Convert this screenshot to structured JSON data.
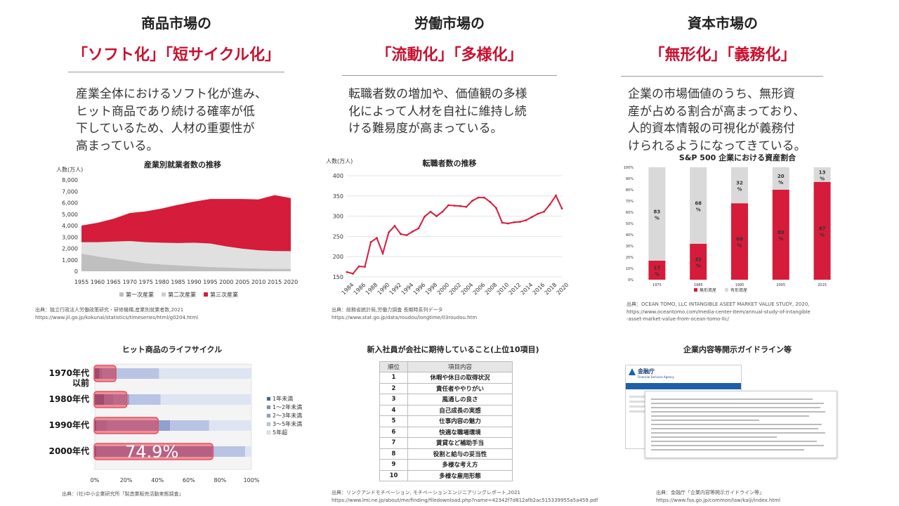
{
  "columns": [
    {
      "title": "商品市場の",
      "subtitle": "「ソフト化」「短サイクル化」",
      "description": "産業全体におけるソフト化が進み、\nヒット商品であり続ける確率が低\n下しているため、人材の重要性が\n高まっている。"
    },
    {
      "title": "労働市場の",
      "subtitle": "「流動化」「多様化」",
      "description": "転職者数の増加や、価値観の多様\n化によって人材を自社に維持し続\nける難易度が高まっている。"
    },
    {
      "title": "資本市場の",
      "subtitle": "「無形化」「義務化」",
      "description": "企業の市場価値のうち、無形資\n産が占める割合が高まっており、\n人的資本情報の可視化が義務付\nけられるようになってきている。"
    }
  ],
  "sources": {
    "s1": "出典：独立行政法人労働政策研究・研修機構,産業別就業者数,2021\nhttps://www.jil.go.jp/kokunai/statistics/timeseries/html/g0204.html",
    "s2": "出典：総務省統計局,労働力調査 長期時系列データ\nhttps://www.stat.go.jp/data/roudou/longtime/03roudou.htm",
    "s3": "出典：OCEAN TOMO, LLC INTANGIBLE ASEET MARKET VALUE STUDY, 2020,\n  https://www.oceantomo.com/media-center-item/annual-study-of-intangible\n  -asset-market-value-from-ocean-tomo-llc/",
    "s4": "出典：(社)中小企業研究所「製造業販売活動実態調査」",
    "s5": "出典：リンクアンドモチベーション, モチベーションエンジニアリングレポート,2021\nhttps://www.lmi.ne.jp/about/me/finding/filedownload.php?name=42342f7d812afb2ac515339955a5a459.pdf",
    "s6": "出典：金融庁「企業内容等開示ガイドライン等」\nhttps://www.fsa.go.jp/common/law/kaiji/index.html"
  },
  "chart_data": [
    {
      "type": "area",
      "title": "産業別就業者数の推移",
      "ylabel": "人数(万人)",
      "ylim": [
        0,
        8000
      ],
      "yticks": [
        "8,000",
        "7,000",
        "6,000",
        "5,000",
        "4,000",
        "3,000",
        "2,000",
        "1,000",
        "0"
      ],
      "x": [
        "1955",
        "1960",
        "1965",
        "1970",
        "1975",
        "1980",
        "1985",
        "1990",
        "1995",
        "2000",
        "2005",
        "2010",
        "2015",
        "2020"
      ],
      "series": [
        {
          "name": "第一次産業",
          "values": [
            1550,
            1300,
            1100,
            900,
            700,
            600,
            520,
            450,
            380,
            330,
            280,
            240,
            220,
            210
          ],
          "color": "#bfbfbf"
        },
        {
          "name": "第二次産業",
          "values": [
            1000,
            1250,
            1500,
            1750,
            1850,
            1900,
            1950,
            2050,
            2050,
            1850,
            1700,
            1600,
            1550,
            1550
          ],
          "color": "#e0e0e0"
        },
        {
          "name": "第三次産業",
          "values": [
            1450,
            1700,
            2000,
            2450,
            2700,
            3000,
            3350,
            3600,
            3900,
            4150,
            4350,
            4450,
            4900,
            4650
          ],
          "color": "#d51c3a"
        }
      ],
      "legend_position": "bottom"
    },
    {
      "type": "line",
      "title": "転職者数の推移",
      "ylabel": "人数(万人)",
      "ylim": [
        150,
        400
      ],
      "yticks": [
        "400",
        "350",
        "300",
        "250",
        "200",
        "150"
      ],
      "xticks": [
        "1984",
        "1986",
        "1988",
        "1990",
        "1992",
        "1994",
        "1996",
        "1998",
        "2000",
        "2002",
        "2004",
        "2006",
        "2008",
        "2010",
        "2012",
        "2014",
        "2016",
        "2018",
        "2020"
      ],
      "x": [
        1984,
        1985,
        1986,
        1987,
        1988,
        1989,
        1990,
        1991,
        1992,
        1993,
        1994,
        1995,
        1996,
        1997,
        1998,
        1999,
        2000,
        2001,
        2002,
        2003,
        2004,
        2005,
        2006,
        2007,
        2008,
        2009,
        2010,
        2011,
        2012,
        2013,
        2014,
        2015,
        2016,
        2017,
        2018,
        2019,
        2020
      ],
      "values": [
        162,
        158,
        176,
        175,
        236,
        246,
        208,
        260,
        276,
        256,
        253,
        262,
        270,
        299,
        311,
        300,
        311,
        327,
        326,
        325,
        323,
        338,
        346,
        346,
        335,
        320,
        284,
        282,
        285,
        286,
        290,
        298,
        306,
        311,
        329,
        351,
        319
      ],
      "color": "#d51c3a"
    },
    {
      "type": "bar",
      "title": "S&P 500 企業における資産割合",
      "categories": [
        "1975",
        "1985",
        "1995",
        "2005",
        "2015"
      ],
      "yticks": [
        "100%",
        "90%",
        "80%",
        "70%",
        "60%",
        "50%",
        "40%",
        "30%",
        "20%",
        "10%",
        "0%"
      ],
      "series": [
        {
          "name": "無形資産",
          "values": [
            17,
            32,
            68,
            80,
            87
          ],
          "color": "#d51c3a"
        },
        {
          "name": "有形資産",
          "values": [
            83,
            68,
            32,
            20,
            13
          ],
          "color": "#d9d9d9"
        }
      ],
      "pct_label": "%",
      "legend_position": "bottom"
    },
    {
      "type": "bar",
      "title": "ヒット商品のライフサイクル",
      "orientation": "horizontal-stacked",
      "categories": [
        "1970年代\n以前",
        "1980年代",
        "1990年代",
        "2000年代"
      ],
      "series": [
        {
          "name": "1年未満",
          "values": [
            3,
            6,
            1,
            1
          ]
        },
        {
          "name": "1～2年未満",
          "values": [
            2,
            6,
            7,
            74
          ]
        },
        {
          "name": "2～3年未満",
          "values": [
            9,
            10,
            40,
            1
          ]
        },
        {
          "name": "3～5年未満",
          "values": [
            27,
            20,
            25,
            20
          ]
        },
        {
          "name": "5年超",
          "values": [
            59,
            58,
            27,
            4
          ]
        }
      ],
      "highlight_values": [
        13,
        20,
        40,
        74.9
      ],
      "highlight_label": "74.9%",
      "xticks": [
        "0%",
        "20%",
        "40%",
        "60%",
        "80%",
        "100%"
      ],
      "legend_position": "right"
    },
    {
      "type": "table",
      "title": "新入社員が会社に期待していること(上位10項目)",
      "headers": [
        "順位",
        "項目内容"
      ],
      "rows": [
        [
          "1",
          "休暇や休日の取得状況"
        ],
        [
          "2",
          "責任者ややりがい"
        ],
        [
          "3",
          "風通しの良さ"
        ],
        [
          "4",
          "自己成長の実感"
        ],
        [
          "5",
          "仕事内容の魅力"
        ],
        [
          "6",
          "快適な職場環境"
        ],
        [
          "7",
          "賃貸など補助手当"
        ],
        [
          "8",
          "役割と給与の妥当性"
        ],
        [
          "9",
          "多様な考え方"
        ],
        [
          "10",
          "多様な雇用形態"
        ]
      ]
    }
  ],
  "guideline": {
    "title": "企業内容等開示ガイドライン等",
    "logo_text": "金融庁",
    "logo_sub": "Financial Services Agency"
  }
}
